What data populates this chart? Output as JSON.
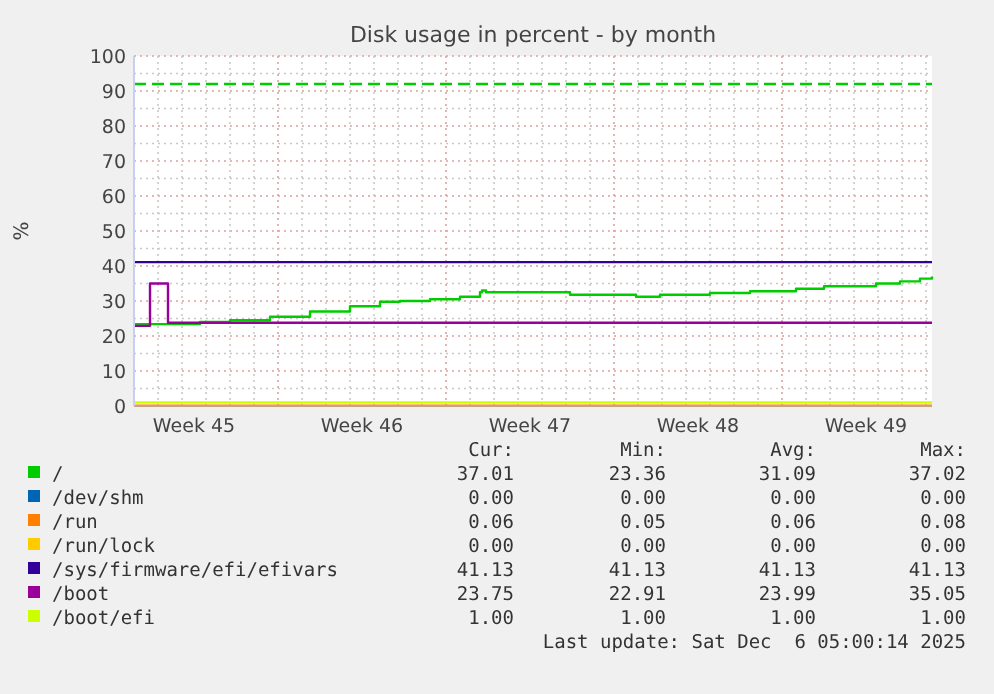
{
  "chart_data": {
    "type": "step",
    "title": "Disk usage in percent - by month",
    "ylabel": "%",
    "xlim": [
      "2025-11-04T00:00",
      "2025-12-07T06:00"
    ],
    "xticks": [
      {
        "value": "2025-11-06T12:00",
        "label": "Week 45"
      },
      {
        "value": "2025-11-13T12:00",
        "label": "Week 46"
      },
      {
        "value": "2025-11-20T12:00",
        "label": "Week 47"
      },
      {
        "value": "2025-11-27T12:00",
        "label": "Week 48"
      },
      {
        "value": "2025-12-04T12:00",
        "label": "Week 49"
      }
    ],
    "ylim": [
      0,
      100
    ],
    "yticks": [
      0,
      10,
      20,
      30,
      40,
      50,
      60,
      70,
      80,
      90,
      100
    ],
    "grid": true,
    "legend": "bottom",
    "ref_lines": [
      {
        "axis": "y",
        "value": 92,
        "color": "#00cc00",
        "line_style": "dashed"
      }
    ],
    "series": [
      {
        "name": "/",
        "color": "#00cc00",
        "x": [
          "2025-11-04T00:00",
          "2025-11-06T18:00",
          "2025-11-08T00:00",
          "2025-11-09T16:00",
          "2025-11-11T08:00",
          "2025-11-13T00:00",
          "2025-11-14T06:00",
          "2025-11-15T02:00",
          "2025-11-16T08:00",
          "2025-11-17T14:00",
          "2025-11-18T10:00",
          "2025-11-18T12:00",
          "2025-11-18T16:00",
          "2025-11-22T04:00",
          "2025-11-24T22:00",
          "2025-11-25T22:00",
          "2025-11-28T00:00",
          "2025-11-29T16:00",
          "2025-12-01T14:00",
          "2025-12-02T18:00",
          "2025-12-04T22:00",
          "2025-12-05T22:00",
          "2025-12-06T18:00",
          "2025-12-07T06:00"
        ],
        "values": [
          23.4,
          24.0,
          24.5,
          25.5,
          27.0,
          28.5,
          29.8,
          30.0,
          30.5,
          31.2,
          32.5,
          33.0,
          32.5,
          31.8,
          31.2,
          31.8,
          32.3,
          32.8,
          33.5,
          34.2,
          35.0,
          35.6,
          36.4,
          37.0
        ]
      },
      {
        "name": "/dev/shm",
        "color": "#0066b3",
        "values": [
          null
        ]
      },
      {
        "name": "/run",
        "color": "#ff8000",
        "x": [
          "2025-11-04T00:00",
          "2025-12-07T06:00"
        ],
        "values": [
          0.06,
          0.06
        ]
      },
      {
        "name": "/run/lock",
        "color": "#ffcc00",
        "values": [
          null
        ]
      },
      {
        "name": "/sys/firmware/efi/efivars",
        "color": "#330099",
        "x": [
          "2025-11-04T00:00",
          "2025-12-07T06:00"
        ],
        "values": [
          41.1,
          41.1
        ]
      },
      {
        "name": "/boot",
        "color": "#990099",
        "x": [
          "2025-11-04T00:00",
          "2025-11-04T12:00",
          "2025-11-04T16:00",
          "2025-11-05T06:00",
          "2025-11-05T10:00",
          "2025-12-07T06:00"
        ],
        "values": [
          22.9,
          22.9,
          35.0,
          35.0,
          23.8,
          23.8
        ]
      },
      {
        "name": "/boot/efi",
        "color": "#ccff00",
        "x": [
          "2025-11-04T00:00",
          "2025-12-07T06:00"
        ],
        "values": [
          1.0,
          1.0
        ]
      }
    ],
    "annotations": [
      "Cur:",
      "Min:",
      "Avg:",
      "Max:",
      "37.01",
      "23.36",
      "31.09",
      "37.02",
      "0.00",
      "0.00",
      "0.00",
      "0.00",
      "0.06",
      "0.05",
      "0.06",
      "0.08",
      "0.00",
      "0.00",
      "0.00",
      "0.00",
      "41.13",
      "41.13",
      "41.13",
      "41.13",
      "23.75",
      "22.91",
      "23.99",
      "35.05",
      "1.00",
      "1.00",
      "1.00",
      "1.00",
      "Last update: Sat Dec  6 05:00:14 2025"
    ]
  }
}
